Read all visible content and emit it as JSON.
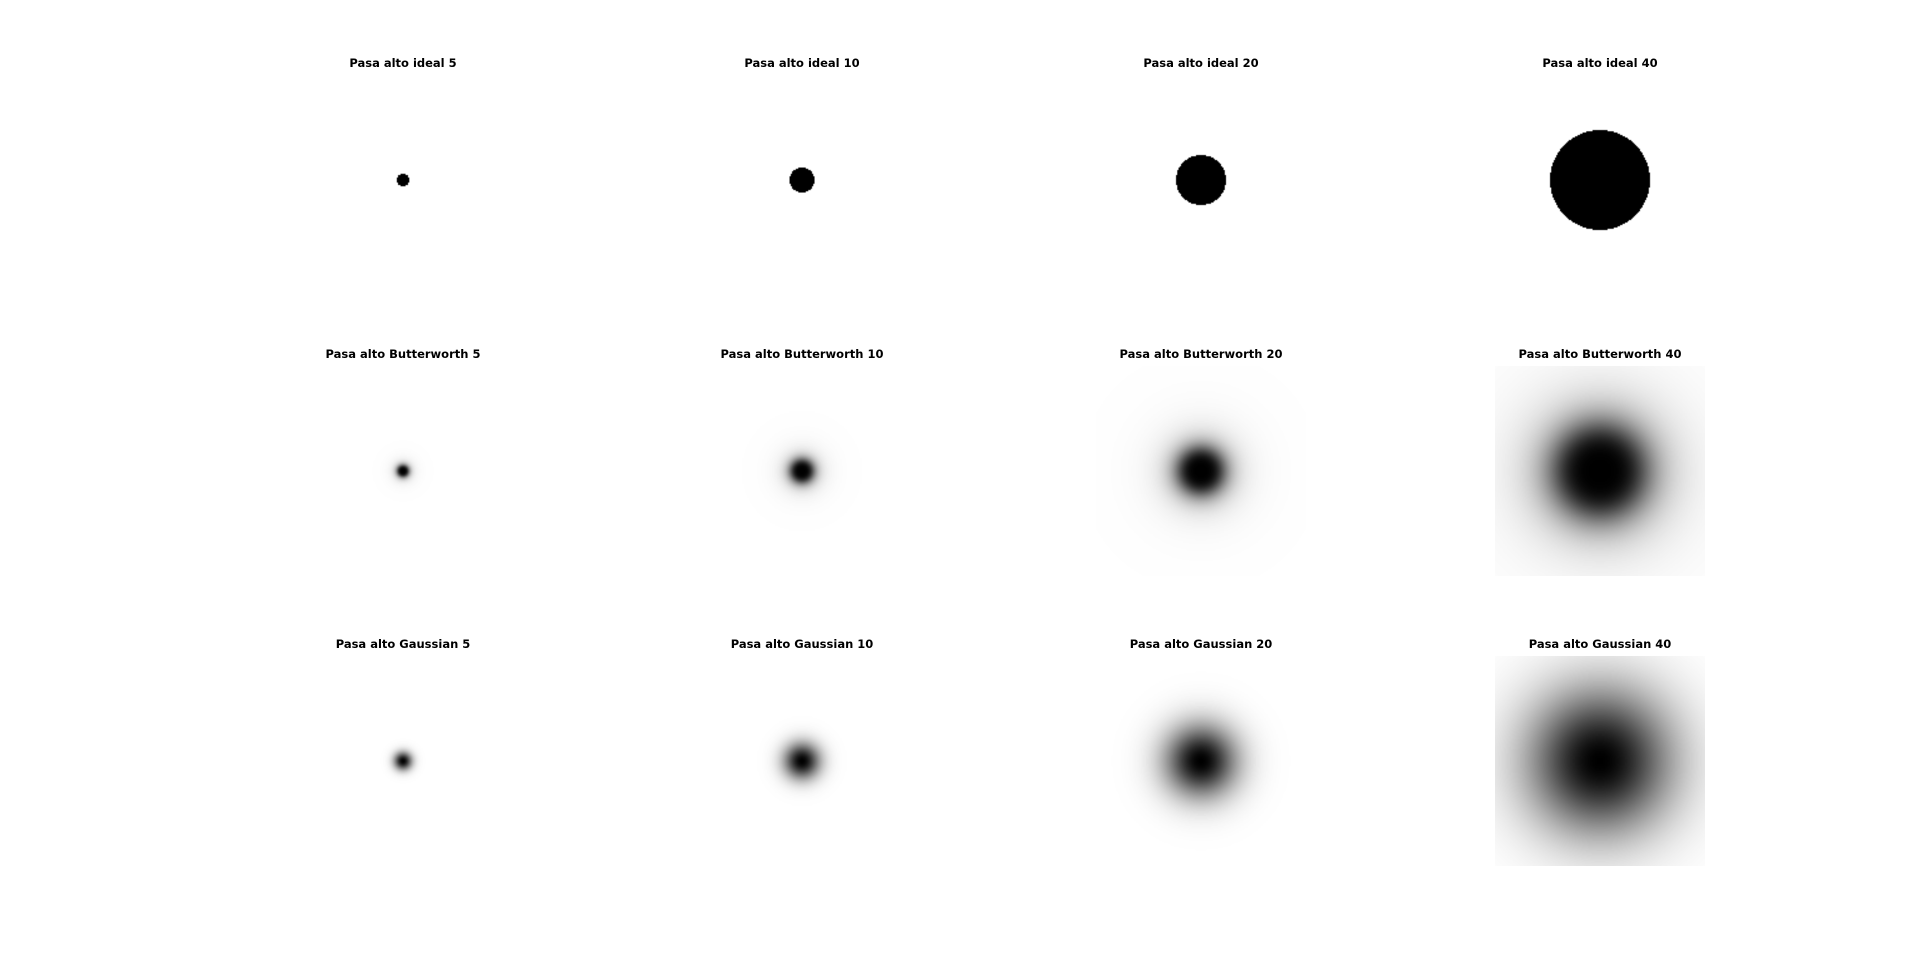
{
  "figure": {
    "background_color": "#ffffff",
    "colormap": "gray",
    "panels": [
      {
        "title": "Pasa alto ideal 5",
        "filter": "ideal",
        "cutoff": 5
      },
      {
        "title": "Pasa alto ideal 10",
        "filter": "ideal",
        "cutoff": 10
      },
      {
        "title": "Pasa alto ideal 20",
        "filter": "ideal",
        "cutoff": 20
      },
      {
        "title": "Pasa alto ideal 40",
        "filter": "ideal",
        "cutoff": 40
      },
      {
        "title": "Pasa alto Butterworth 5",
        "filter": "butterworth",
        "cutoff": 5
      },
      {
        "title": "Pasa alto Butterworth 10",
        "filter": "butterworth",
        "cutoff": 10
      },
      {
        "title": "Pasa alto Butterworth 20",
        "filter": "butterworth",
        "cutoff": 20
      },
      {
        "title": "Pasa alto Butterworth 40",
        "filter": "butterworth",
        "cutoff": 40
      },
      {
        "title": "Pasa alto Gaussian 5",
        "filter": "gaussian",
        "cutoff": 5
      },
      {
        "title": "Pasa alto Gaussian 10",
        "filter": "gaussian",
        "cutoff": 10
      },
      {
        "title": "Pasa alto Gaussian 20",
        "filter": "gaussian",
        "cutoff": 20
      },
      {
        "title": "Pasa alto Gaussian 40",
        "filter": "gaussian",
        "cutoff": 40
      }
    ]
  }
}
